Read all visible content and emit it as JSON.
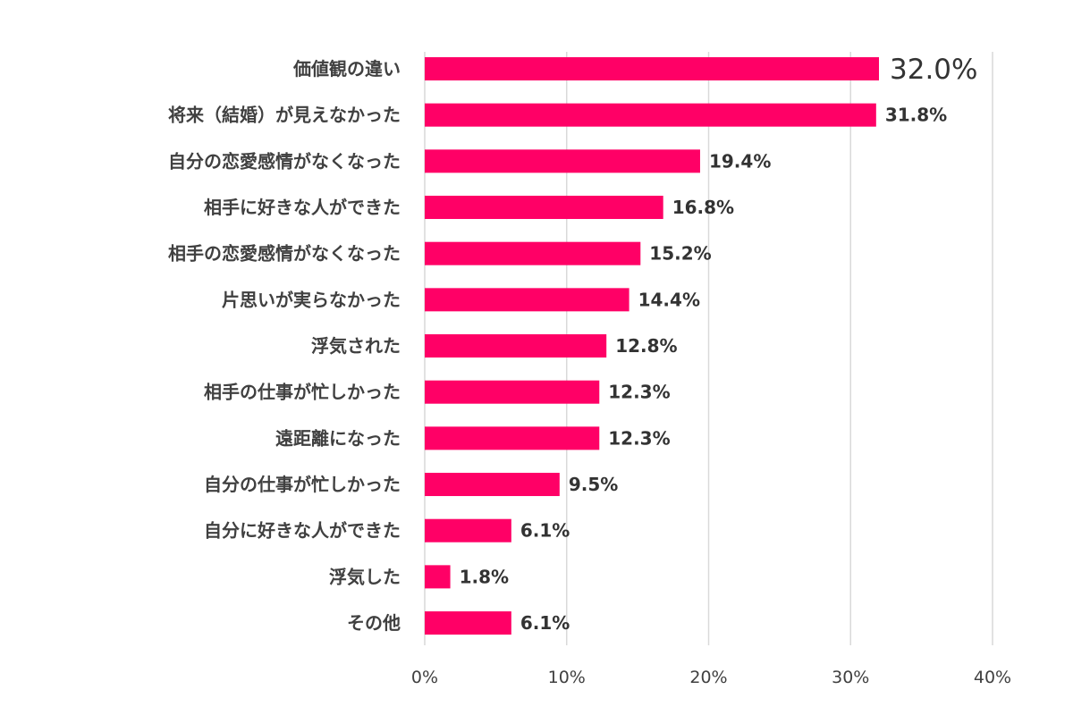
{
  "chart_data": {
    "type": "bar",
    "orientation": "horizontal",
    "title": "",
    "xlabel": "",
    "ylabel": "",
    "categories": [
      "価値観の違い",
      "将来（結婚）が見えなかった",
      "自分の恋愛感情がなくなった",
      "相手に好きな人ができた",
      "相手の恋愛感情がなくなった",
      "片思いが実らなかった",
      "浮気された",
      "相手の仕事が忙しかった",
      "遠距離になった",
      "自分の仕事が忙しかった",
      "自分に好きな人ができた",
      "浮気した",
      "その他"
    ],
    "values": [
      32.0,
      31.8,
      19.4,
      16.8,
      15.2,
      14.4,
      12.8,
      12.3,
      12.3,
      9.5,
      6.1,
      1.8,
      6.1
    ],
    "value_labels": [
      "32.0%",
      "31.8%",
      "19.4%",
      "16.8%",
      "15.2%",
      "14.4%",
      "12.8%",
      "12.3%",
      "12.3%",
      "9.5%",
      "6.1%",
      "1.8%",
      "6.1%"
    ],
    "xlim": [
      0,
      40
    ],
    "xticks": [
      0,
      10,
      20,
      30,
      40
    ],
    "xtick_labels": [
      "0%",
      "10%",
      "20%",
      "30%",
      "40%"
    ],
    "grid": "vertical",
    "highlight_index": 0,
    "colors": {
      "bar": "#ff0066",
      "highlight_label": "#ff0066",
      "grid": "#d9d9d9"
    }
  }
}
